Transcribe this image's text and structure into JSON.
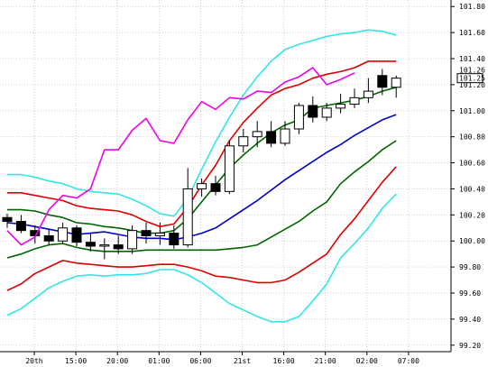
{
  "chart_data": {
    "type": "line",
    "title": "",
    "xlabel": "",
    "ylabel": "",
    "ylim": [
      99.15,
      101.85
    ],
    "y_ticks": [
      "101.80",
      "101.60",
      "101.40",
      "101.20",
      "101.00",
      "100.80",
      "100.60",
      "100.40",
      "100.20",
      "100.00",
      "99.80",
      "99.60",
      "99.40",
      "99.20"
    ],
    "x_ticks": [
      "20th",
      "15:00",
      "20:00",
      "01:00",
      "06:00",
      "21st",
      "16:00",
      "21:00",
      "02:00",
      "07:00"
    ],
    "current_price_label": "101.25",
    "price_overlay_label": "101.26",
    "grid": true,
    "colors": {
      "candle_border": "#000000",
      "ma_center": "#0000cc",
      "band_1sigma": "#006400",
      "band_2sigma": "#dd0000",
      "band_3sigma": "#33e6e6",
      "lagging_span": "#ee00ee"
    },
    "series": [
      {
        "key": "ma_center",
        "values": [
          100.14,
          100.13,
          100.11,
          100.09,
          100.07,
          100.05,
          100.06,
          100.07,
          100.05,
          100.03,
          100.02,
          100.02,
          100.01,
          100.03,
          100.06,
          100.1,
          100.17,
          100.24,
          100.31,
          100.39,
          100.47,
          100.54,
          100.61,
          100.68,
          100.74,
          100.81,
          100.87,
          100.93,
          100.97
        ]
      },
      {
        "key": "band_1sigma_upper",
        "values": [
          100.24,
          100.24,
          100.23,
          100.2,
          100.18,
          100.14,
          100.13,
          100.11,
          100.1,
          100.08,
          100.06,
          100.06,
          100.08,
          100.17,
          100.3,
          100.43,
          100.56,
          100.66,
          100.75,
          100.83,
          100.89,
          100.93,
          101.02,
          101.04,
          101.06,
          101.08,
          101.11,
          101.15,
          101.18
        ]
      },
      {
        "key": "band_1sigma_lower",
        "values": [
          99.87,
          99.9,
          99.94,
          99.97,
          99.98,
          99.95,
          99.93,
          99.92,
          99.92,
          99.92,
          99.93,
          99.93,
          99.93,
          99.93,
          99.93,
          99.93,
          99.94,
          99.95,
          99.97,
          100.03,
          100.09,
          100.15,
          100.23,
          100.3,
          100.44,
          100.53,
          100.61,
          100.7,
          100.77
        ]
      },
      {
        "key": "band_2sigma_upper",
        "values": [
          100.37,
          100.37,
          100.35,
          100.33,
          100.31,
          100.27,
          100.25,
          100.24,
          100.23,
          100.2,
          100.15,
          100.11,
          100.13,
          100.26,
          100.43,
          100.58,
          100.77,
          100.91,
          101.02,
          101.12,
          101.17,
          101.2,
          101.25,
          101.28,
          101.3,
          101.33,
          101.38,
          101.38,
          101.38
        ]
      },
      {
        "key": "band_2sigma_lower",
        "values": [
          99.62,
          99.67,
          99.75,
          99.8,
          99.85,
          99.83,
          99.82,
          99.81,
          99.8,
          99.8,
          99.81,
          99.82,
          99.82,
          99.8,
          99.77,
          99.73,
          99.72,
          99.7,
          99.68,
          99.68,
          99.7,
          99.76,
          99.83,
          99.9,
          100.05,
          100.17,
          100.31,
          100.45,
          100.57
        ]
      },
      {
        "key": "band_3sigma_upper",
        "values": [
          100.51,
          100.51,
          100.49,
          100.46,
          100.44,
          100.4,
          100.38,
          100.37,
          100.36,
          100.32,
          100.27,
          100.21,
          100.19,
          100.33,
          100.55,
          100.76,
          100.95,
          101.12,
          101.26,
          101.38,
          101.47,
          101.51,
          101.54,
          101.57,
          101.59,
          101.6,
          101.62,
          101.61,
          101.58
        ]
      },
      {
        "key": "band_3sigma_lower",
        "values": [
          99.43,
          99.48,
          99.56,
          99.64,
          99.69,
          99.73,
          99.74,
          99.73,
          99.74,
          99.74,
          99.75,
          99.78,
          99.78,
          99.74,
          99.68,
          99.6,
          99.52,
          99.47,
          99.42,
          99.38,
          99.38,
          99.42,
          99.54,
          99.67,
          99.87,
          99.98,
          100.1,
          100.25,
          100.36
        ]
      },
      {
        "key": "lagging_span",
        "values": [
          100.08,
          99.97,
          100.03,
          100.24,
          100.35,
          100.33,
          100.4,
          100.7,
          100.7,
          100.85,
          100.94,
          100.77,
          100.75,
          100.93,
          101.07,
          101.01,
          101.1,
          101.09,
          101.15,
          101.14,
          101.22,
          101.26,
          101.33,
          101.2,
          101.24,
          101.29
        ]
      }
    ],
    "candles": [
      {
        "o": 100.18,
        "h": 100.21,
        "l": 100.1,
        "c": 100.15
      },
      {
        "o": 100.15,
        "h": 100.2,
        "l": 100.06,
        "c": 100.08
      },
      {
        "o": 100.08,
        "h": 100.12,
        "l": 99.98,
        "c": 100.04
      },
      {
        "o": 100.04,
        "h": 100.09,
        "l": 99.97,
        "c": 100.0
      },
      {
        "o": 100.0,
        "h": 100.14,
        "l": 99.98,
        "c": 100.1
      },
      {
        "o": 100.1,
        "h": 100.12,
        "l": 99.96,
        "c": 99.99
      },
      {
        "o": 99.99,
        "h": 100.06,
        "l": 99.92,
        "c": 99.96
      },
      {
        "o": 99.96,
        "h": 100.02,
        "l": 99.86,
        "c": 99.97
      },
      {
        "o": 99.97,
        "h": 100.04,
        "l": 99.9,
        "c": 99.94
      },
      {
        "o": 99.94,
        "h": 100.12,
        "l": 99.9,
        "c": 100.08
      },
      {
        "o": 100.08,
        "h": 100.14,
        "l": 99.98,
        "c": 100.04
      },
      {
        "o": 100.04,
        "h": 100.14,
        "l": 99.97,
        "c": 100.06
      },
      {
        "o": 100.06,
        "h": 100.12,
        "l": 99.94,
        "c": 99.97
      },
      {
        "o": 99.97,
        "h": 100.56,
        "l": 99.95,
        "c": 100.4
      },
      {
        "o": 100.4,
        "h": 100.48,
        "l": 100.34,
        "c": 100.44
      },
      {
        "o": 100.44,
        "h": 100.5,
        "l": 100.35,
        "c": 100.38
      },
      {
        "o": 100.38,
        "h": 100.77,
        "l": 100.36,
        "c": 100.73
      },
      {
        "o": 100.73,
        "h": 100.86,
        "l": 100.68,
        "c": 100.8
      },
      {
        "o": 100.8,
        "h": 100.92,
        "l": 100.72,
        "c": 100.84
      },
      {
        "o": 100.84,
        "h": 100.92,
        "l": 100.72,
        "c": 100.75
      },
      {
        "o": 100.75,
        "h": 100.92,
        "l": 100.73,
        "c": 100.86
      },
      {
        "o": 100.86,
        "h": 101.06,
        "l": 100.82,
        "c": 101.04
      },
      {
        "o": 101.04,
        "h": 101.11,
        "l": 100.91,
        "c": 100.95
      },
      {
        "o": 100.95,
        "h": 101.06,
        "l": 100.92,
        "c": 101.02
      },
      {
        "o": 101.02,
        "h": 101.13,
        "l": 100.98,
        "c": 101.05
      },
      {
        "o": 101.05,
        "h": 101.17,
        "l": 101.02,
        "c": 101.1
      },
      {
        "o": 101.1,
        "h": 101.25,
        "l": 101.06,
        "c": 101.15
      },
      {
        "o": 101.27,
        "h": 101.32,
        "l": 101.12,
        "c": 101.18
      },
      {
        "o": 101.18,
        "h": 101.27,
        "l": 101.1,
        "c": 101.25
      }
    ]
  }
}
